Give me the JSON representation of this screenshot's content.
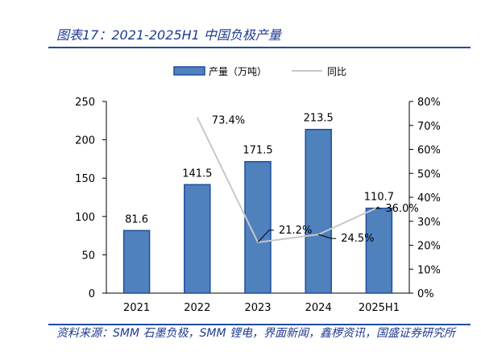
{
  "title": "图表17：2021-2025H1 中国负极产量",
  "source": "资料来源：SMM 石墨负极，SMM 锂电，界面新闻，鑫椤资讯，国盛证券研究所",
  "chart_data": {
    "type": "bar",
    "categories": [
      "2021",
      "2022",
      "2023",
      "2024",
      "2025H1"
    ],
    "series": [
      {
        "name": "产量（万吨）",
        "type": "bar",
        "axis": "left",
        "values": [
          81.6,
          141.5,
          171.5,
          213.5,
          110.7
        ],
        "labels": [
          "81.6",
          "141.5",
          "171.5",
          "213.5",
          "110.7"
        ]
      },
      {
        "name": "同比",
        "type": "line",
        "axis": "right",
        "values": [
          null,
          73.4,
          21.2,
          24.5,
          36.0
        ],
        "labels": [
          "",
          "73.4%",
          "21.2%",
          "24.5%",
          "36.0%"
        ]
      }
    ],
    "y_left": {
      "ylim": [
        0,
        250
      ],
      "ticks": [
        "0",
        "50",
        "100",
        "150",
        "200",
        "250"
      ]
    },
    "y_right": {
      "ylim": [
        0,
        80
      ],
      "ticks": [
        "0%",
        "10%",
        "20%",
        "30%",
        "40%",
        "50%",
        "60%",
        "70%",
        "80%"
      ]
    },
    "legend_position": "top-center",
    "grid": false,
    "colors": {
      "bar_fill": "#4f81bd",
      "bar_stroke": "#1f4e9c",
      "line": "#c8c8c8",
      "title": "#1f3a93",
      "rule": "#1f4e9c"
    }
  }
}
